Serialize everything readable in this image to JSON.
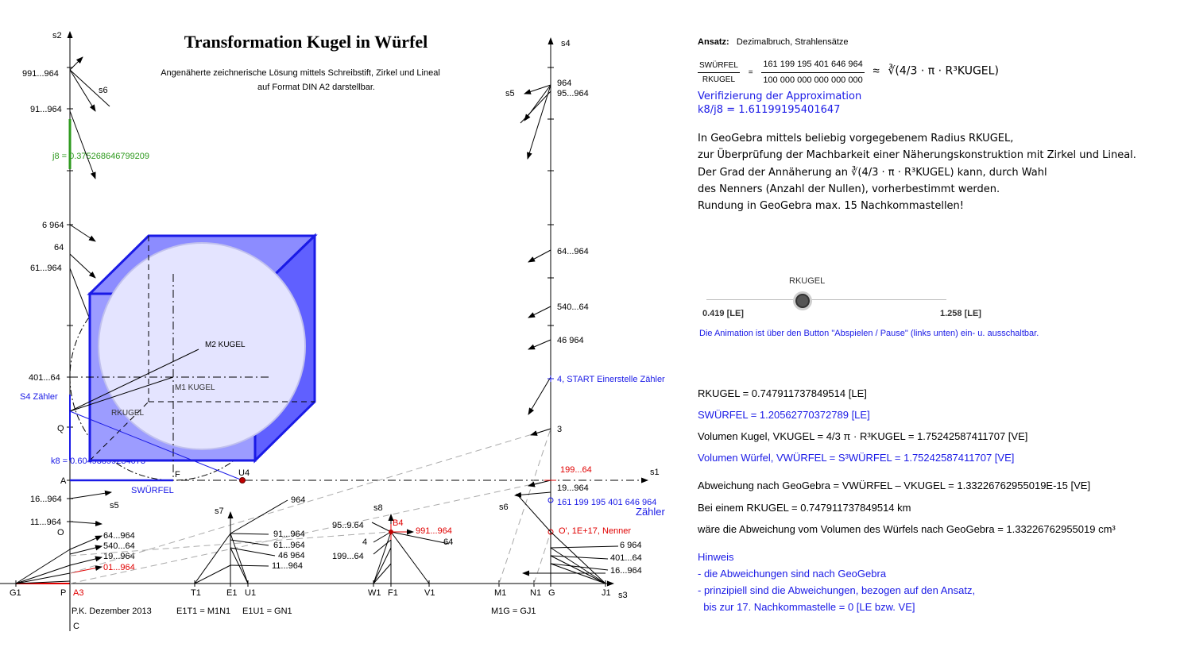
{
  "title": "Transformation Kugel in Würfel",
  "subtitle_line1": "Angenäherte zeichnerische Lösung mittels Schreibstift, Zirkel und Lineal",
  "subtitle_line2": "auf Format DIN A2 darstellbar.",
  "axis_labels": {
    "s1": "s1",
    "s2": "s2",
    "s3": "s3",
    "s4": "s4",
    "s5": "s5",
    "s6": "s6",
    "s7": "s7",
    "s8": "s8"
  },
  "left_axis_ticks": [
    "991...964",
    "91...964",
    "6 964",
    "64",
    "61...964",
    "401...64",
    "Q",
    "A",
    "16...964",
    "11...964",
    "O",
    "C"
  ],
  "j8_label": "j8 = 0.375268646799209",
  "k8_label": "k8 = 0.60493899234073",
  "s4_counter_label": "S4 Zähler",
  "cube_labels": {
    "m1": "M1 KUGEL",
    "m2": "M2 KUGEL",
    "r": "RKUGEL",
    "f": "F",
    "u4": "U4",
    "swuerfel": "SWÜRFEL"
  },
  "right_axis_ticks": [
    "964",
    "95...964",
    "64...964",
    "540...64",
    "46 964",
    "4, START Einerstelle Zähler",
    "3",
    "199...64",
    "19...964",
    "161 199 195 401 646 964",
    "Zähler",
    "O', 1E+17, Nenner"
  ],
  "fan_left_labels": [
    "64...964",
    "540...64",
    "19...964",
    "01...964"
  ],
  "fan_s7_labels": [
    "964",
    "91...964",
    "61...964",
    "46 964",
    "11...964"
  ],
  "fan_s8_labels": [
    "95..9.64",
    "4",
    "199...64",
    "991...964",
    "64",
    "B4"
  ],
  "fan_right_labels": [
    "6 964",
    "401...64",
    "16...964"
  ],
  "bottom_points": [
    "G1",
    "P",
    "A3",
    "T1",
    "E1",
    "U1",
    "W1",
    "F1",
    "V1",
    "M1",
    "N1",
    "G",
    "J1"
  ],
  "author": "P.K. Dezember 2013",
  "segment_eq1": "E1T1 = M1N1",
  "segment_eq2": "E1U1 = GN1",
  "segment_eq3": "M1G = GJ1",
  "panel": {
    "ansatz_label": "Ansatz:",
    "ansatz_text": "Dezimalbruch, Strahlensätze",
    "frac_left_num": "SWÜRFEL",
    "frac_left_den": "RKUGEL",
    "frac_right_num": "161 199 195 401 646 964",
    "frac_right_den": "100 000 000 000 000 000",
    "approx_expr": "∛(4/3 · π · R³KUGEL)",
    "verify_title": "Verifizierung der Approximation",
    "verify_value": "k8/j8 = 1.61199195401647",
    "desc1": "In GeoGebra mittels beliebig vorgegebenem Radius RKUGEL,",
    "desc2": "zur Überprüfung der Machbarkeit einer Näherungskonstruktion mit Zirkel und Lineal.",
    "desc3a": "Der Grad der Annäherung an",
    "desc3b": "kann, durch Wahl",
    "desc4": "des Nenners (Anzahl der Nullen), vorherbestimmt werden.",
    "desc5": "Rundung in GeoGebra max. 15 Nachkommastellen!",
    "slider_label": "RKUGEL",
    "slider_min": "0.419 [LE]",
    "slider_max": "1.258 [LE]",
    "slider_fraction": 0.4,
    "animation_note": "Die Animation ist über den Button \"Abspielen / Pause\" (links unten) ein- u. ausschaltbar.",
    "r_kugel": "RKUGEL = 0.747911737849514 [LE]",
    "s_wuerfel": "SWÜRFEL = 1.20562770372789 [LE]",
    "vol_kugel": "Volumen Kugel, VKUGEL = 4/3 π · R³KUGEL = 1.75242587411707 [VE]",
    "vol_wuerfel": "Volumen Würfel, VWÜRFEL = S³WÜRFEL = 1.75242587411707 [VE]",
    "abweichung": "Abweichung nach GeoGebra = VWÜRFEL – VKUGEL = 1.33226762955019E-15 [VE]",
    "bei_einem": "Bei einem RKUGEL = 0.747911737849514 km",
    "waere": "wäre die Abweichung vom Volumen des Würfels nach GeoGebra = 1.33226762955019 cm³",
    "hinweis_title": "Hinweis",
    "hinweis1": "- die Abweichungen sind nach GeoGebra",
    "hinweis2": "- prinzipiell sind die Abweichungen, bezogen auf den Ansatz,",
    "hinweis3": "  bis zur 17. Nachkommastelle = 0 [LE bzw. VE]"
  },
  "colors": {
    "blue": "#1a1ae6",
    "green": "#2e9a1e",
    "red": "#e00000",
    "cube_fill": "#8c8cff",
    "axis": "#000000"
  }
}
